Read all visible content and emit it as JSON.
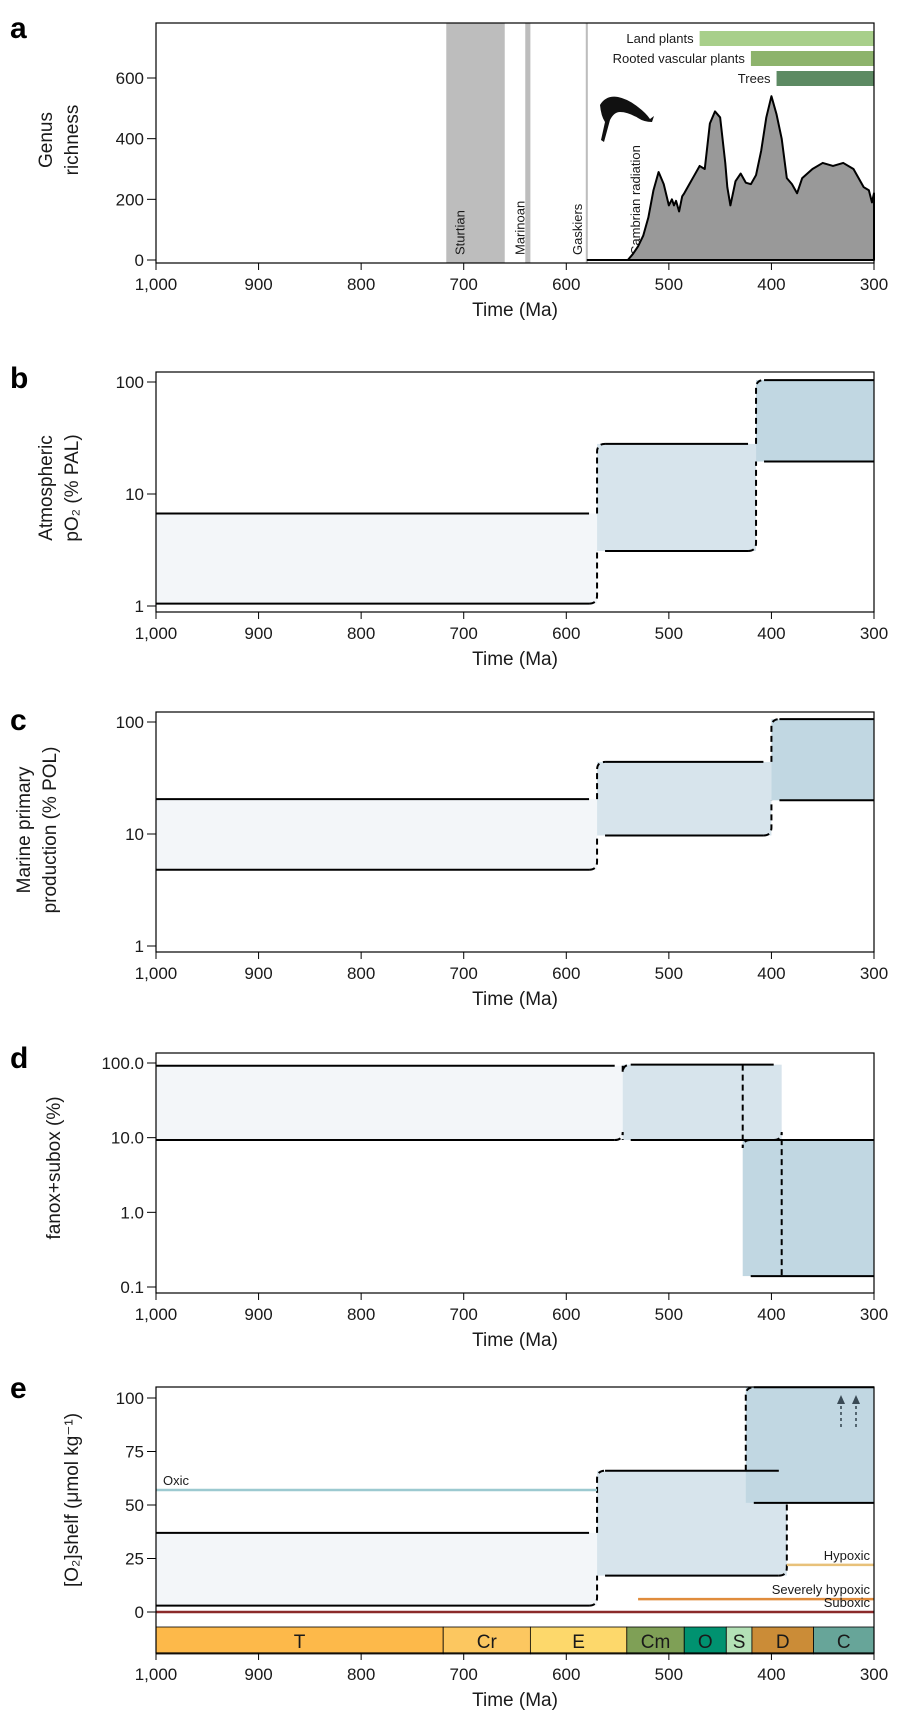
{
  "chart_data": [
    {
      "panel": "a",
      "type": "area",
      "xlabel": "Time (Ma)",
      "ylabel": [
        "Genus",
        "richness"
      ],
      "xlim": [
        1000,
        300
      ],
      "ylim": [
        0,
        780
      ],
      "xticks": [
        1000,
        900,
        800,
        700,
        600,
        500,
        400,
        300
      ],
      "xtick_labels": [
        "1,000",
        "900",
        "800",
        "700",
        "600",
        "500",
        "400",
        "300"
      ],
      "yticks": [
        0,
        200,
        400,
        600
      ],
      "glaciations": [
        {
          "name": "Sturtian",
          "start": 717,
          "end": 660
        },
        {
          "name": "Marinoan",
          "start": 640,
          "end": 635
        },
        {
          "name": "Gaskiers",
          "start": 581,
          "end": 579
        }
      ],
      "annotation": "Cambrian radiation",
      "bars": [
        {
          "label": "Land plants",
          "start": 470,
          "end": 300,
          "color": "#a8cf8a"
        },
        {
          "label": "Rooted vascular plants",
          "start": 420,
          "end": 300,
          "color": "#8db36c"
        },
        {
          "label": "Trees",
          "start": 395,
          "end": 300,
          "color": "#5d8a63"
        }
      ],
      "series": {
        "x": [
          540,
          535,
          530,
          525,
          520,
          515,
          510,
          505,
          500,
          497,
          495,
          493,
          490,
          487,
          485,
          480,
          475,
          470,
          465,
          460,
          455,
          450,
          445,
          443,
          440,
          435,
          430,
          425,
          420,
          415,
          410,
          405,
          400,
          395,
          390,
          385,
          380,
          375,
          370,
          360,
          350,
          340,
          330,
          320,
          315,
          310,
          305,
          302,
          300
        ],
        "y": [
          0,
          20,
          45,
          80,
          140,
          230,
          290,
          250,
          180,
          200,
          180,
          195,
          160,
          210,
          220,
          250,
          280,
          310,
          300,
          450,
          490,
          470,
          320,
          240,
          180,
          260,
          285,
          255,
          250,
          280,
          360,
          470,
          540,
          480,
          400,
          270,
          250,
          220,
          270,
          300,
          320,
          310,
          320,
          300,
          270,
          240,
          230,
          190,
          220
        ]
      },
      "fill_color": "#999999"
    },
    {
      "panel": "b",
      "type": "area",
      "xlabel": "Time (Ma)",
      "ylabel": [
        "Atmospheric",
        "pO2 (% PAL)"
      ],
      "yscale": "log",
      "ylim": [
        0.9,
        120
      ],
      "yticks": [
        1,
        10,
        100
      ],
      "xticks": [
        1000,
        900,
        800,
        700,
        600,
        500,
        400,
        300
      ],
      "xtick_labels": [
        "1,000",
        "900",
        "800",
        "700",
        "600",
        "500",
        "400",
        "300"
      ],
      "bands": [
        {
          "start": 1000,
          "end": 570,
          "low": 1.05,
          "high": 6.7,
          "color": "#f3f6f9"
        },
        {
          "start": 570,
          "end": 415,
          "low": 3.1,
          "high": 28,
          "color": "#d7e4ec"
        },
        {
          "start": 415,
          "end": 300,
          "low": 19.5,
          "high": 104,
          "color": "#c1d7e2"
        }
      ]
    },
    {
      "panel": "c",
      "type": "area",
      "xlabel": "Time (Ma)",
      "ylabel": [
        "Marine primary",
        "production (% POL)"
      ],
      "yscale": "log",
      "ylim": [
        0.9,
        120
      ],
      "yticks": [
        1,
        10,
        100
      ],
      "xticks": [
        1000,
        900,
        800,
        700,
        600,
        500,
        400,
        300
      ],
      "xtick_labels": [
        "1,000",
        "900",
        "800",
        "700",
        "600",
        "500",
        "400",
        "300"
      ],
      "bands": [
        {
          "start": 1000,
          "end": 570,
          "low": 4.8,
          "high": 20.5,
          "color": "#f3f6f9"
        },
        {
          "start": 570,
          "end": 400,
          "low": 9.7,
          "high": 44,
          "color": "#d7e4ec"
        },
        {
          "start": 400,
          "end": 300,
          "low": 20,
          "high": 106,
          "color": "#c1d7e2"
        }
      ]
    },
    {
      "panel": "d",
      "type": "area",
      "xlabel": "Time (Ma)",
      "ylabel": [
        "f anox+subox (%)"
      ],
      "yscale": "log",
      "ylim": [
        0.09,
        120
      ],
      "yticks": [
        0.1,
        1.0,
        10.0,
        100.0
      ],
      "ytick_labels": [
        "0.1",
        "1.0",
        "10.0",
        "100.0"
      ],
      "xticks": [
        1000,
        900,
        800,
        700,
        600,
        500,
        400,
        300
      ],
      "xtick_labels": [
        "1,000",
        "900",
        "800",
        "700",
        "600",
        "500",
        "400",
        "300"
      ],
      "bands": [
        {
          "start": 1000,
          "end": 545,
          "low": 9.3,
          "high": 92,
          "color": "#f3f6f9"
        },
        {
          "start": 545,
          "end": 390,
          "low": 9.3,
          "high": 95,
          "color": "#d7e4ec"
        },
        {
          "start": 428,
          "end": 300,
          "low": 0.14,
          "high": 9.3,
          "color": "#c1d7e2"
        }
      ]
    },
    {
      "panel": "e",
      "type": "area",
      "xlabel": "Time (Ma)",
      "ylabel": [
        "[O2]shelf (μmol kg-1)"
      ],
      "ylim": [
        -5,
        105
      ],
      "yticks": [
        0,
        25,
        50,
        75,
        100
      ],
      "xticks": [
        1000,
        900,
        800,
        700,
        600,
        500,
        400,
        300
      ],
      "xtick_labels": [
        "1,000",
        "900",
        "800",
        "700",
        "600",
        "500",
        "400",
        "300"
      ],
      "bands": [
        {
          "start": 1000,
          "end": 570,
          "low": 3,
          "high": 37,
          "color": "#f3f6f9"
        },
        {
          "start": 570,
          "end": 385,
          "low": 17,
          "high": 66,
          "color": "#d7e4ec"
        },
        {
          "start": 425,
          "end": 300,
          "low": 51,
          "high": 105,
          "color": "#c1d7e2"
        }
      ],
      "thresholds": [
        {
          "label": "Oxic",
          "value": 57,
          "start": 1000,
          "end": 570,
          "color": "#9cc9d0"
        },
        {
          "label": "Hypoxic",
          "value": 22,
          "start": 385,
          "end": 300,
          "color": "#e8c17a"
        },
        {
          "label": "Severely hypoxic",
          "value": 6,
          "start": 530,
          "end": 300,
          "color": "#e08c3c"
        },
        {
          "label": "Suboxic",
          "value": 0,
          "start": 1000,
          "end": 300,
          "color": "#8b2a2a"
        }
      ],
      "periods": [
        {
          "label": "T",
          "start": 1000,
          "end": 720,
          "color": "#fdb94a"
        },
        {
          "label": "Cr",
          "start": 720,
          "end": 635,
          "color": "#fcc760"
        },
        {
          "label": "E",
          "start": 635,
          "end": 541,
          "color": "#fdd86b"
        },
        {
          "label": "Cm",
          "start": 541,
          "end": 485,
          "color": "#7fa056"
        },
        {
          "label": "O",
          "start": 485,
          "end": 444,
          "color": "#009270"
        },
        {
          "label": "S",
          "start": 444,
          "end": 419,
          "color": "#b3e1b6"
        },
        {
          "label": "D",
          "start": 419,
          "end": 359,
          "color": "#cb8c37"
        },
        {
          "label": "C",
          "start": 359,
          "end": 300,
          "color": "#67a599"
        }
      ]
    }
  ]
}
